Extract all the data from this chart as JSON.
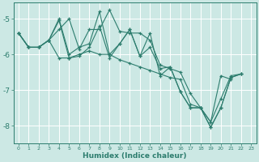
{
  "xlabel": "Humidex (Indice chaleur)",
  "bg_color": "#cce8e4",
  "line_color": "#2d7d6e",
  "grid_color": "#ffffff",
  "xlim": [
    -0.5,
    23.5
  ],
  "ylim": [
    -8.5,
    -4.55
  ],
  "yticks": [
    -8,
    -7,
    -6,
    -5
  ],
  "xticks": [
    0,
    1,
    2,
    3,
    4,
    5,
    6,
    7,
    8,
    9,
    10,
    11,
    12,
    13,
    14,
    15,
    16,
    17,
    18,
    19,
    20,
    21,
    22,
    23
  ],
  "s1_x": [
    0,
    1,
    2,
    3,
    4,
    5,
    6,
    7,
    8,
    9,
    10,
    11,
    12,
    13,
    14,
    15,
    16,
    17,
    18,
    19,
    20,
    21
  ],
  "s1_y": [
    -5.4,
    -5.8,
    -5.8,
    -5.6,
    -5.3,
    -5.0,
    -5.85,
    -5.3,
    -5.3,
    -4.75,
    -5.35,
    -5.4,
    -5.4,
    -5.6,
    -6.3,
    -6.4,
    -6.5,
    -7.1,
    -7.5,
    -7.9,
    -6.6,
    -6.7
  ],
  "s2_x": [
    0,
    1,
    2,
    3,
    4,
    5,
    6,
    7,
    8,
    9,
    10,
    11,
    12,
    13,
    14,
    15,
    16,
    17,
    18,
    19,
    20,
    21,
    22
  ],
  "s2_y": [
    -5.4,
    -5.8,
    -5.8,
    -5.6,
    -6.1,
    -6.1,
    -6.0,
    -5.9,
    -6.0,
    -6.0,
    -6.15,
    -6.25,
    -6.35,
    -6.45,
    -6.55,
    -6.65,
    -6.7,
    -7.4,
    -7.5,
    -7.9,
    -7.25,
    -6.6,
    -6.55
  ],
  "s3_x": [
    0,
    1,
    2,
    3,
    4,
    5,
    6,
    7,
    8,
    9,
    10,
    11,
    12,
    13,
    14,
    15,
    16,
    17,
    18,
    19,
    20,
    21,
    22
  ],
  "s3_y": [
    -5.4,
    -5.8,
    -5.8,
    -5.6,
    -5.0,
    -6.0,
    -5.8,
    -5.7,
    -4.8,
    -6.0,
    -5.7,
    -5.3,
    -6.05,
    -5.4,
    -6.6,
    -6.35,
    -7.05,
    -7.5,
    -7.5,
    -8.05,
    -7.5,
    -6.65,
    -6.55
  ],
  "s4_x": [
    0,
    1,
    2,
    3,
    4,
    5,
    6,
    7,
    8,
    9,
    10,
    11,
    12,
    13,
    14,
    15,
    16,
    17,
    18,
    19,
    20,
    21,
    22
  ],
  "s4_y": [
    -5.4,
    -5.8,
    -5.8,
    -5.6,
    -5.05,
    -6.1,
    -6.05,
    -5.8,
    -5.2,
    -6.1,
    -5.7,
    -5.3,
    -6.05,
    -5.8,
    -6.4,
    -6.35,
    -7.05,
    -7.5,
    -7.5,
    -8.05,
    -7.5,
    -6.65,
    -6.55
  ]
}
